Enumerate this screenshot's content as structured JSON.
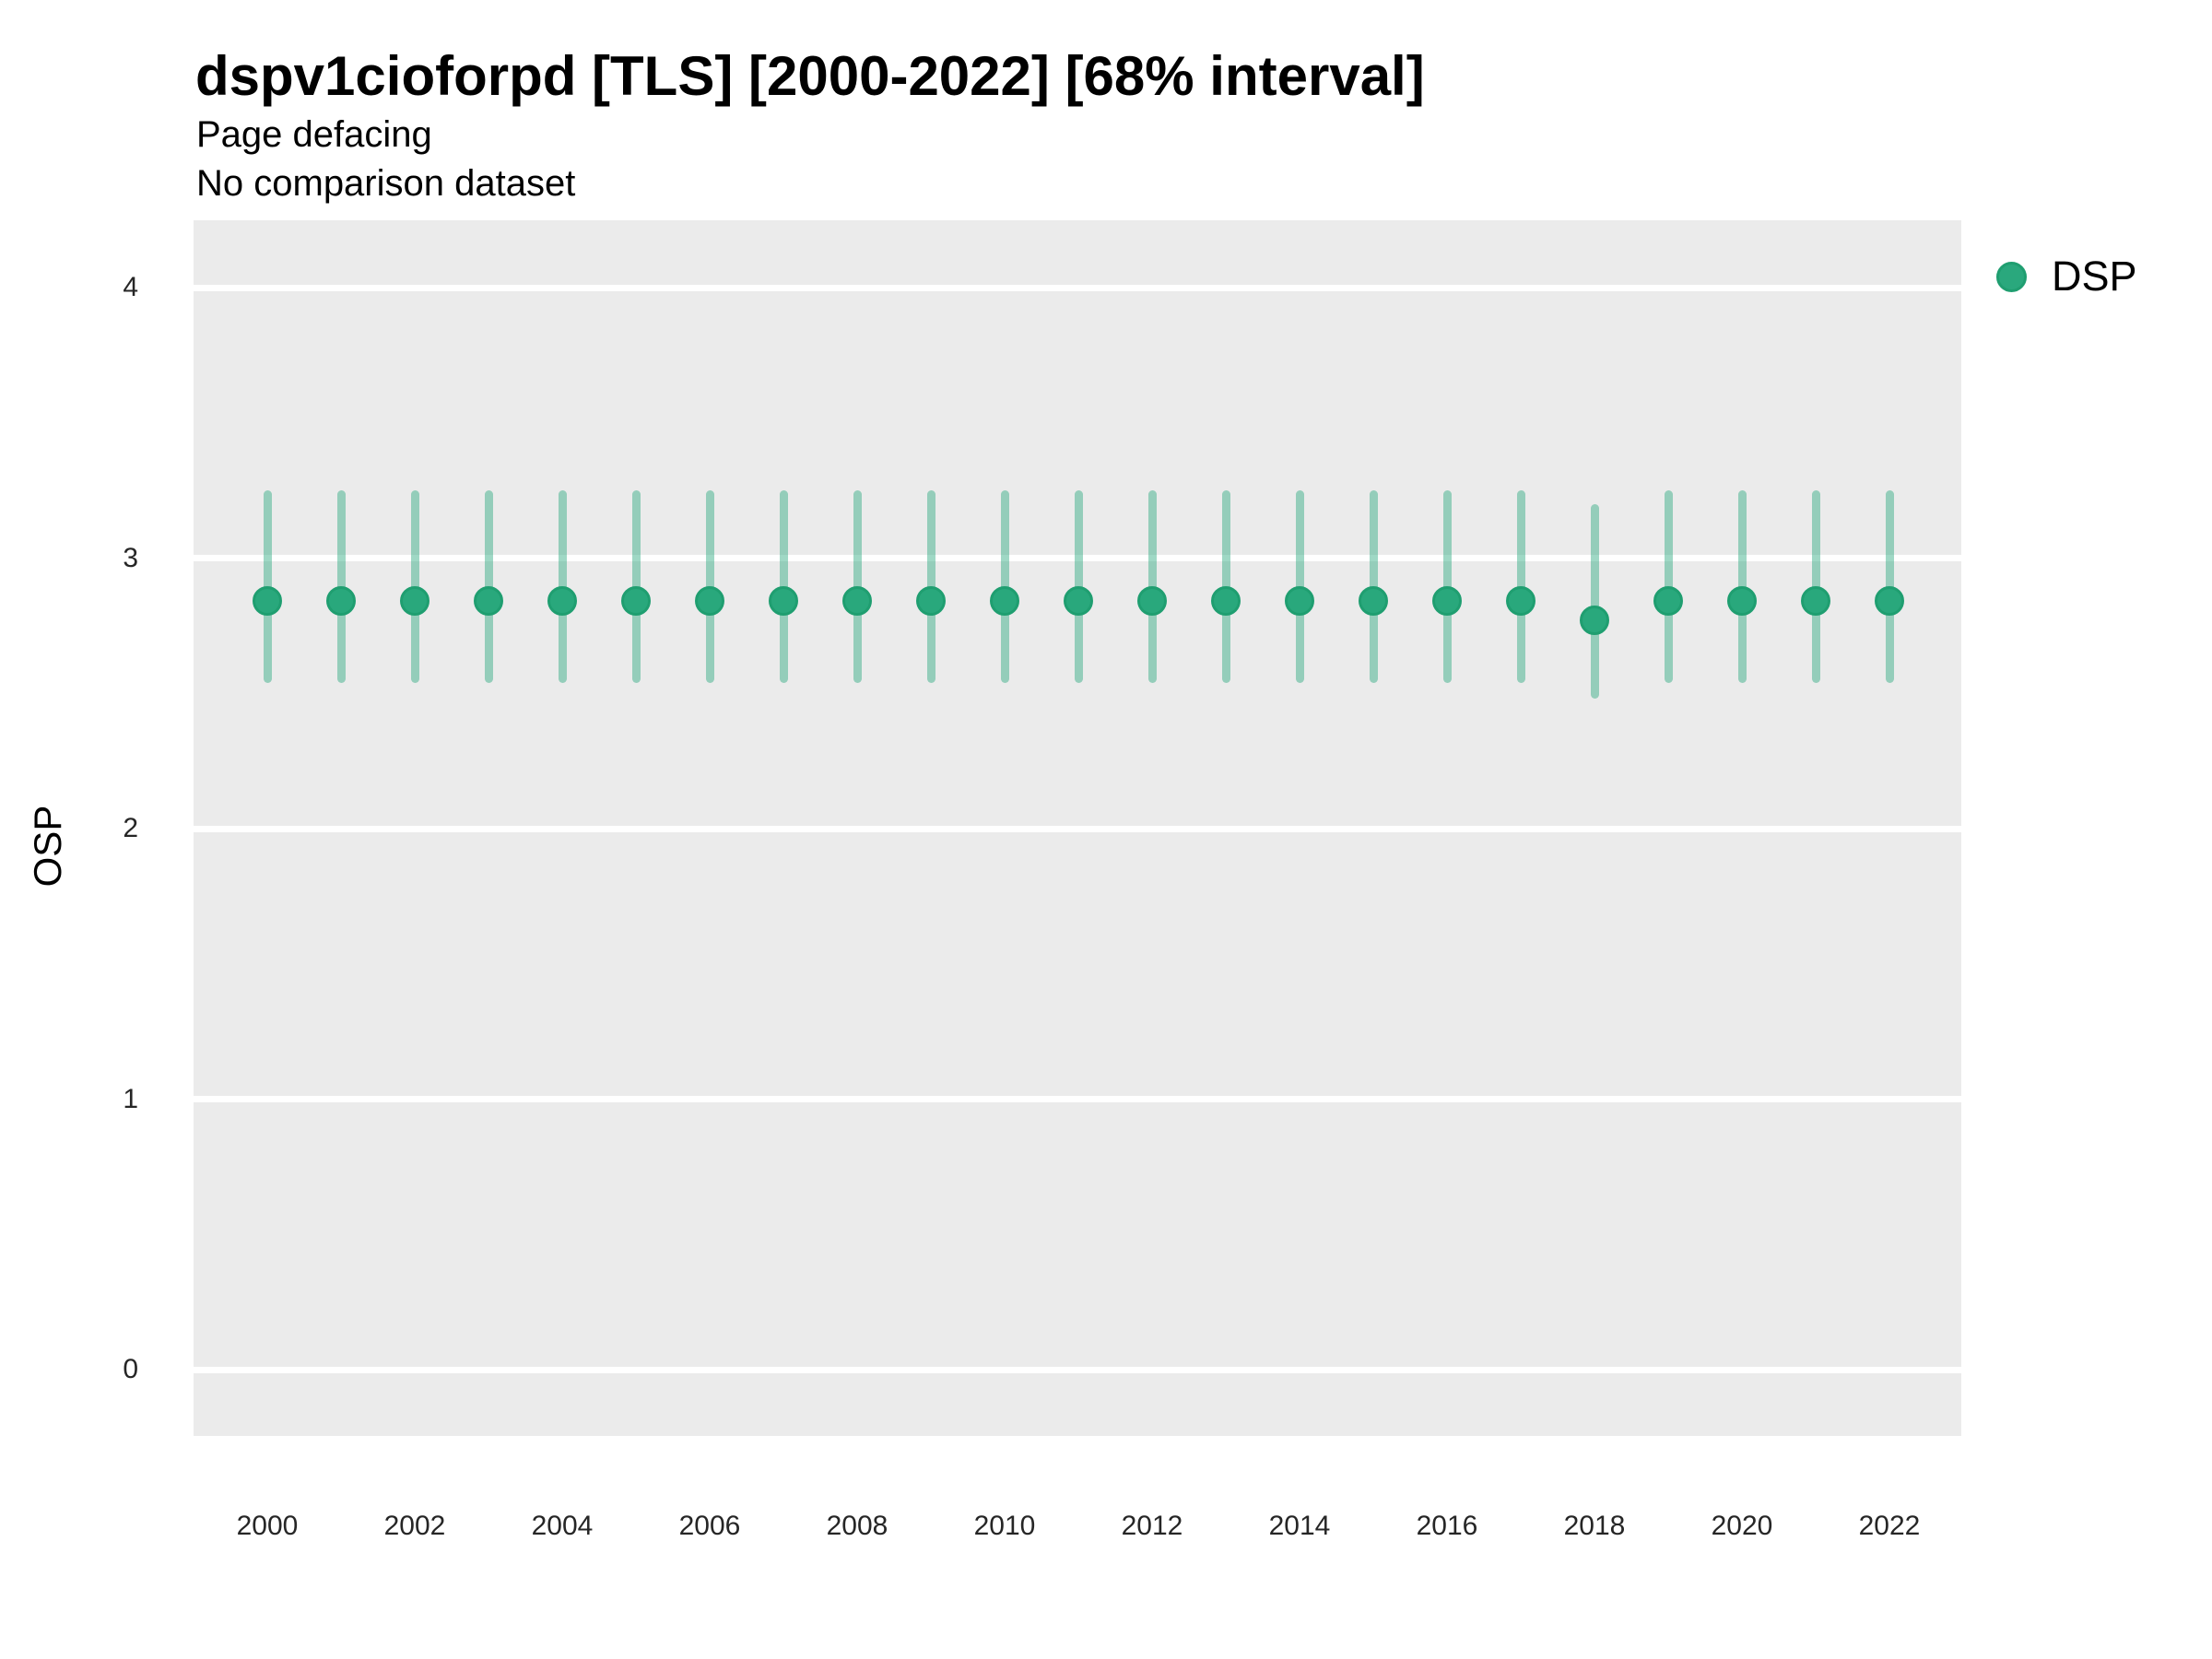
{
  "header": {
    "title": "dspv1cioforpd [TLS] [2000-2022] [68% interval]",
    "subtitle": "Page defacing",
    "note": "No comparison dataset"
  },
  "y_axis": {
    "label": "OSP",
    "ticks": [
      4,
      3,
      2,
      1,
      0
    ]
  },
  "x_axis": {
    "tick_years": [
      2000,
      2002,
      2004,
      2006,
      2008,
      2010,
      2012,
      2014,
      2016,
      2018,
      2020,
      2022
    ]
  },
  "legend": [
    {
      "label": "DSP",
      "color": "#2aa87d"
    }
  ],
  "colors": {
    "panel_background": "#ebebeb",
    "gridline": "#ffffff",
    "point_fill": "#29a87c",
    "point_stroke": "#1f9e70",
    "interval_bar": "rgba(42,168,126,0.45)",
    "text": "#000000",
    "tick_text": "#262626"
  },
  "chart_data": {
    "type": "scatter",
    "subtype": "pointrange",
    "title": "dspv1cioforpd [TLS] [2000-2022] [68% interval]",
    "subtitle": "Page defacing",
    "note": "No comparison dataset",
    "xlabel": "",
    "ylabel": "OSP",
    "ylim": [
      -0.25,
      4.25
    ],
    "yticks": [
      0,
      1,
      2,
      3,
      4
    ],
    "xticks": [
      2000,
      2002,
      2004,
      2006,
      2008,
      2010,
      2012,
      2014,
      2016,
      2018,
      2020,
      2022
    ],
    "grid": "horizontal-major-only",
    "legend_position": "right-top",
    "interval": "68%",
    "series": [
      {
        "name": "DSP",
        "points": [
          {
            "year": 2000,
            "value": 2.84,
            "lo": 2.54,
            "hi": 3.25
          },
          {
            "year": 2001,
            "value": 2.84,
            "lo": 2.54,
            "hi": 3.25
          },
          {
            "year": 2002,
            "value": 2.84,
            "lo": 2.54,
            "hi": 3.25
          },
          {
            "year": 2003,
            "value": 2.84,
            "lo": 2.54,
            "hi": 3.25
          },
          {
            "year": 2004,
            "value": 2.84,
            "lo": 2.54,
            "hi": 3.25
          },
          {
            "year": 2005,
            "value": 2.84,
            "lo": 2.54,
            "hi": 3.25
          },
          {
            "year": 2006,
            "value": 2.84,
            "lo": 2.54,
            "hi": 3.25
          },
          {
            "year": 2007,
            "value": 2.84,
            "lo": 2.54,
            "hi": 3.25
          },
          {
            "year": 2008,
            "value": 2.84,
            "lo": 2.54,
            "hi": 3.25
          },
          {
            "year": 2009,
            "value": 2.84,
            "lo": 2.54,
            "hi": 3.25
          },
          {
            "year": 2010,
            "value": 2.84,
            "lo": 2.54,
            "hi": 3.25
          },
          {
            "year": 2011,
            "value": 2.84,
            "lo": 2.54,
            "hi": 3.25
          },
          {
            "year": 2012,
            "value": 2.84,
            "lo": 2.54,
            "hi": 3.25
          },
          {
            "year": 2013,
            "value": 2.84,
            "lo": 2.54,
            "hi": 3.25
          },
          {
            "year": 2014,
            "value": 2.84,
            "lo": 2.54,
            "hi": 3.25
          },
          {
            "year": 2015,
            "value": 2.84,
            "lo": 2.54,
            "hi": 3.25
          },
          {
            "year": 2016,
            "value": 2.84,
            "lo": 2.54,
            "hi": 3.25
          },
          {
            "year": 2017,
            "value": 2.84,
            "lo": 2.54,
            "hi": 3.25
          },
          {
            "year": 2018,
            "value": 2.77,
            "lo": 2.48,
            "hi": 3.2
          },
          {
            "year": 2019,
            "value": 2.84,
            "lo": 2.54,
            "hi": 3.25
          },
          {
            "year": 2020,
            "value": 2.84,
            "lo": 2.54,
            "hi": 3.25
          },
          {
            "year": 2021,
            "value": 2.84,
            "lo": 2.54,
            "hi": 3.25
          },
          {
            "year": 2022,
            "value": 2.84,
            "lo": 2.54,
            "hi": 3.25
          }
        ]
      }
    ]
  }
}
